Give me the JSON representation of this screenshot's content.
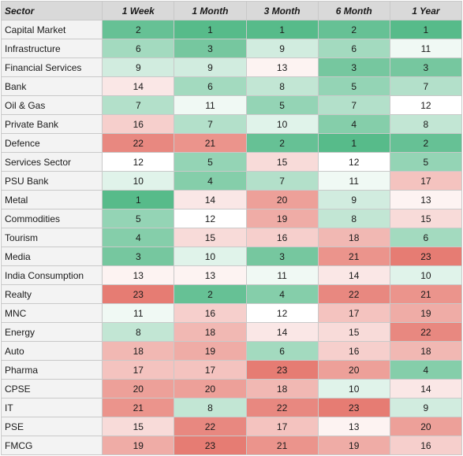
{
  "chart_data": {
    "type": "table",
    "columns": [
      "Sector",
      "1 Week",
      "1 Month",
      "3 Month",
      "6 Month",
      "1 Year"
    ],
    "rows": [
      {
        "sector": "Capital Market",
        "values": [
          2,
          1,
          1,
          2,
          1
        ]
      },
      {
        "sector": "Infrastructure",
        "values": [
          6,
          3,
          9,
          6,
          11
        ]
      },
      {
        "sector": "Financial Services",
        "values": [
          9,
          9,
          13,
          3,
          3
        ]
      },
      {
        "sector": "Bank",
        "values": [
          14,
          6,
          8,
          5,
          7
        ]
      },
      {
        "sector": "Oil & Gas",
        "values": [
          7,
          11,
          5,
          7,
          12
        ]
      },
      {
        "sector": "Private Bank",
        "values": [
          16,
          7,
          10,
          4,
          8
        ]
      },
      {
        "sector": "Defence",
        "values": [
          22,
          21,
          2,
          1,
          2
        ]
      },
      {
        "sector": "Services Sector",
        "values": [
          12,
          5,
          15,
          12,
          5
        ]
      },
      {
        "sector": "PSU Bank",
        "values": [
          10,
          4,
          7,
          11,
          17
        ]
      },
      {
        "sector": "Metal",
        "values": [
          1,
          14,
          20,
          9,
          13
        ]
      },
      {
        "sector": "Commodities",
        "values": [
          5,
          12,
          19,
          8,
          15
        ]
      },
      {
        "sector": "Tourism",
        "values": [
          4,
          15,
          16,
          18,
          6
        ]
      },
      {
        "sector": "Media",
        "values": [
          3,
          10,
          3,
          21,
          23
        ]
      },
      {
        "sector": "India Consumption",
        "values": [
          13,
          13,
          11,
          14,
          10
        ]
      },
      {
        "sector": "Realty",
        "values": [
          23,
          2,
          4,
          22,
          21
        ]
      },
      {
        "sector": "MNC",
        "values": [
          11,
          16,
          12,
          17,
          19
        ]
      },
      {
        "sector": "Energy",
        "values": [
          8,
          18,
          14,
          15,
          22
        ]
      },
      {
        "sector": "Auto",
        "values": [
          18,
          19,
          6,
          16,
          18
        ]
      },
      {
        "sector": "Pharma",
        "values": [
          17,
          17,
          23,
          20,
          4
        ]
      },
      {
        "sector": "CPSE",
        "values": [
          20,
          20,
          18,
          10,
          14
        ]
      },
      {
        "sector": "IT",
        "values": [
          21,
          8,
          22,
          23,
          9
        ]
      },
      {
        "sector": "PSE",
        "values": [
          15,
          22,
          17,
          13,
          20
        ]
      },
      {
        "sector": "FMCG",
        "values": [
          19,
          23,
          21,
          19,
          16
        ]
      }
    ],
    "rank_range": [
      1,
      23
    ],
    "colors": {
      "best": "#57bb8a",
      "mid": "#ffffff",
      "worst": "#e67c73",
      "header_bg": "#d9d9d9",
      "sector_bg": "#f3f3f3"
    }
  }
}
